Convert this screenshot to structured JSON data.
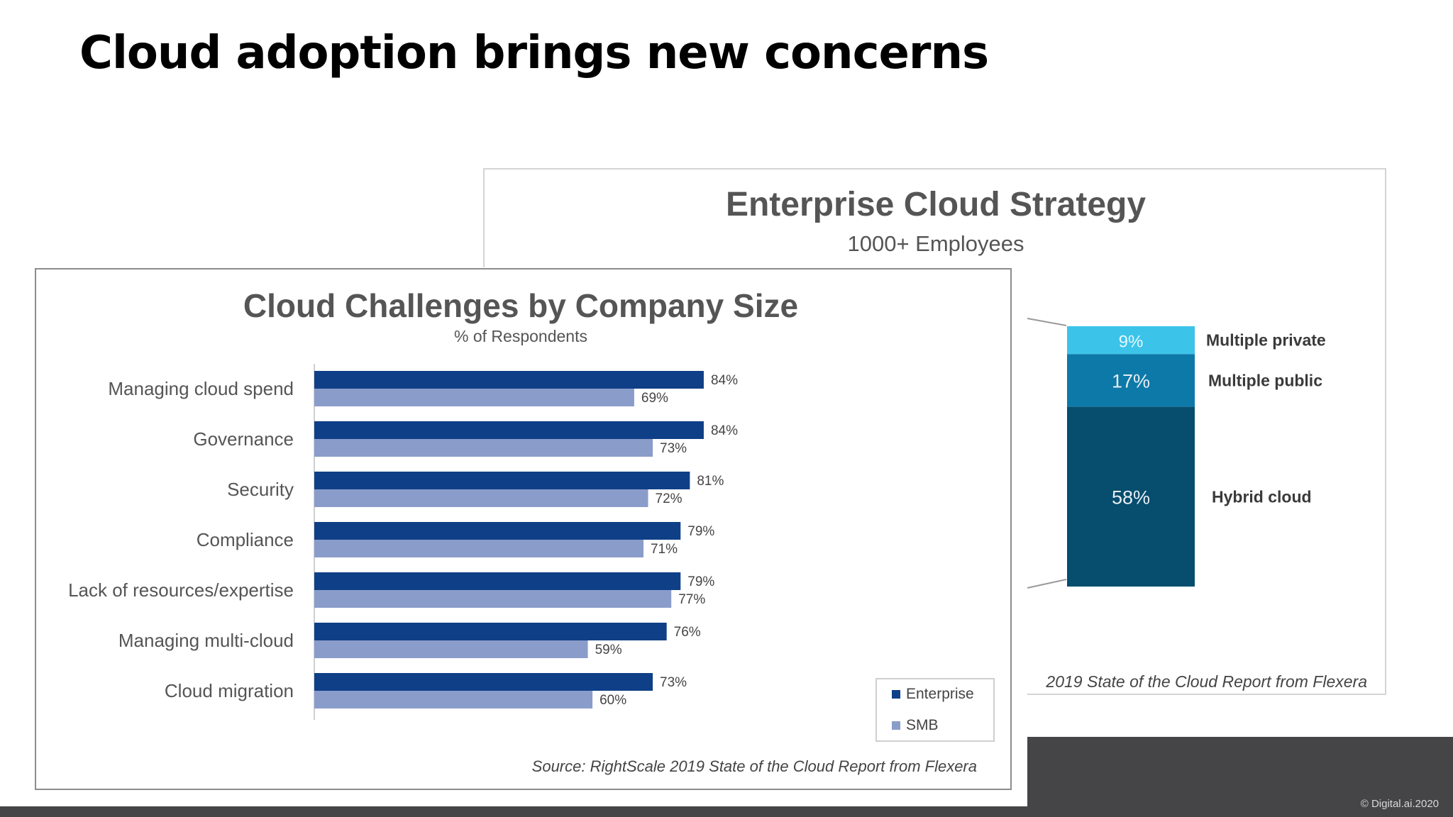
{
  "slide": {
    "title": "Cloud adoption brings new concerns",
    "copyright": "© Digital.ai.2020"
  },
  "colors": {
    "enterprise": "#0f3f87",
    "smb": "#8a9cc9",
    "multiple_private": "#3cc3ea",
    "multiple_public": "#0d79a8",
    "hybrid": "#064d6e",
    "footer": "#454547"
  },
  "chart_data": [
    {
      "type": "bar",
      "orientation": "horizontal",
      "title": "Cloud Challenges by Company Size",
      "subtitle": "% of Respondents",
      "categories": [
        "Managing cloud spend",
        "Governance",
        "Security",
        "Compliance",
        "Lack of resources/expertise",
        "Managing multi-cloud",
        "Cloud migration"
      ],
      "series": [
        {
          "name": "Enterprise",
          "values": [
            84,
            84,
            81,
            79,
            79,
            76,
            73
          ],
          "labels": [
            "84%",
            "84%",
            "81%",
            "79%",
            "79%",
            "76%",
            "73%"
          ]
        },
        {
          "name": "SMB",
          "values": [
            69,
            73,
            72,
            71,
            77,
            59,
            60
          ],
          "labels": [
            "69%",
            "73%",
            "72%",
            "71%",
            "77%",
            "59%",
            "60%"
          ]
        }
      ],
      "xlim": [
        0,
        100
      ],
      "legend": "bottom-right",
      "source": "Source: RightScale 2019 State of the Cloud Report from Flexera"
    },
    {
      "type": "bar",
      "orientation": "stacked-vertical",
      "title": "Enterprise Cloud Strategy",
      "subtitle": "1000+ Employees",
      "segments": [
        {
          "name": "Multiple private",
          "value": 9,
          "label": "9%"
        },
        {
          "name": "Multiple public",
          "value": 17,
          "label": "17%"
        },
        {
          "name": "Hybrid cloud",
          "value": 58,
          "label": "58%"
        }
      ],
      "source": "2019 State of the Cloud Report from Flexera"
    }
  ]
}
